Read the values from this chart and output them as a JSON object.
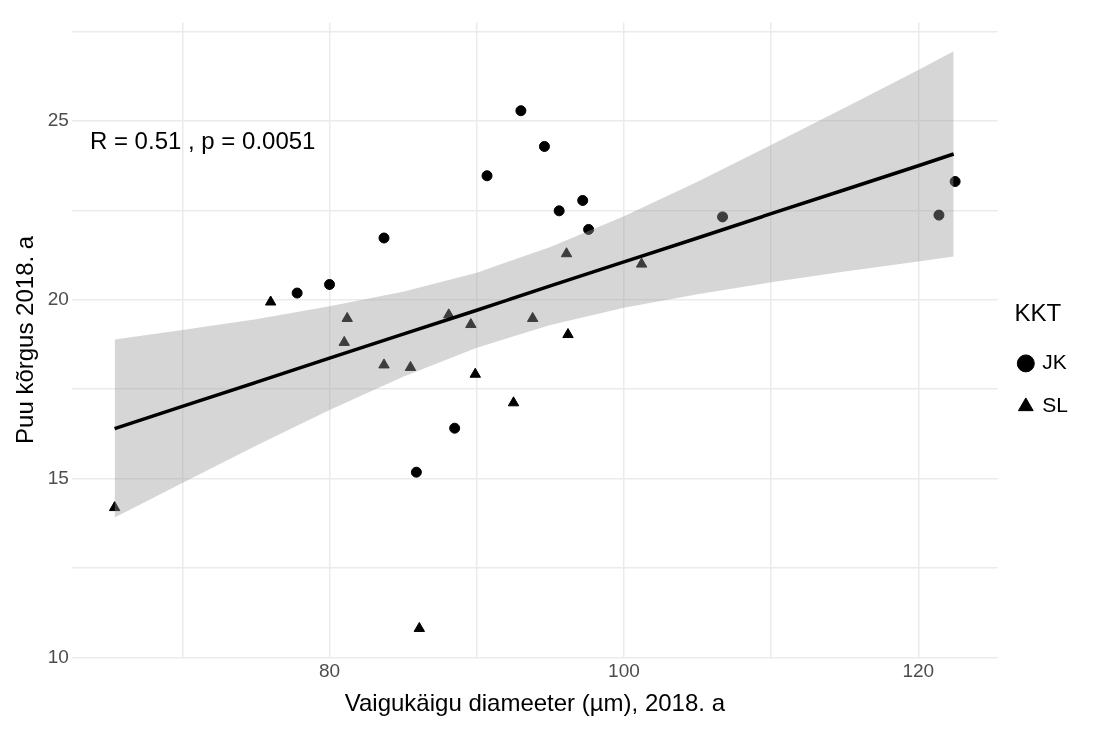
{
  "chart_data": {
    "type": "scatter",
    "xlabel": "Vaigukäigu diameeter (µm), 2018. a",
    "ylabel": "Puu kõrgus 2018. a",
    "legend_title": "KKT",
    "legend": "right",
    "grid": true,
    "xlim": [
      62.5,
      125.4
    ],
    "ylim": [
      10,
      27.76
    ],
    "xticks": [
      {
        "value": 70,
        "label": null
      },
      80,
      {
        "value": 90,
        "label": null
      },
      100,
      {
        "value": 110,
        "label": null
      },
      120
    ],
    "yticks": [
      10,
      {
        "value": 12.5,
        "label": null
      },
      15,
      {
        "value": 17.5,
        "label": null
      },
      20,
      {
        "value": 22.5,
        "label": null
      },
      25,
      {
        "value": 27.5,
        "label": null
      }
    ],
    "annotations": [
      "R = 0.51 , p = 0.0051"
    ],
    "series": [
      {
        "name": "JK",
        "marker": "circle",
        "color": "#000000",
        "x": [
          93.0,
          94.6,
          90.7,
          95.6,
          83.7,
          80.0,
          77.8,
          97.2,
          97.6,
          106.7,
          121.4,
          122.5,
          88.5,
          85.9
        ],
        "values": [
          25.29,
          24.29,
          23.47,
          22.49,
          21.73,
          20.43,
          20.19,
          22.78,
          21.97,
          22.32,
          22.37,
          23.31,
          16.41,
          15.18
        ]
      },
      {
        "name": "SL",
        "marker": "triangle",
        "color": "#000000",
        "x": [
          76.0,
          81.2,
          81.0,
          88.1,
          89.6,
          93.8,
          83.7,
          85.5,
          89.9,
          96.1,
          101.2,
          96.2,
          92.5,
          65.4,
          86.1
        ],
        "values": [
          19.94,
          19.48,
          18.81,
          19.58,
          19.31,
          19.48,
          18.18,
          18.11,
          17.92,
          21.29,
          21.0,
          19.03,
          17.12,
          14.19,
          10.81
        ]
      },
      {
        "type": "line",
        "color": "#000000",
        "marker": "none",
        "line_style": "solid",
        "x": [
          65.4,
          70,
          75,
          80,
          85,
          90,
          95,
          100,
          105,
          110,
          115,
          120,
          122.4
        ],
        "values": [
          16.4,
          17.02,
          17.69,
          18.37,
          19.04,
          19.71,
          20.39,
          21.06,
          21.73,
          22.41,
          23.08,
          23.75,
          24.08
        ],
        "lower": [
          13.91,
          14.88,
          15.92,
          16.92,
          17.85,
          18.66,
          19.3,
          19.78,
          20.16,
          20.49,
          20.79,
          21.07,
          21.21
        ],
        "upper": [
          18.89,
          19.16,
          19.46,
          19.82,
          20.23,
          20.76,
          21.48,
          22.34,
          23.3,
          24.33,
          25.37,
          26.43,
          26.95
        ]
      }
    ]
  }
}
